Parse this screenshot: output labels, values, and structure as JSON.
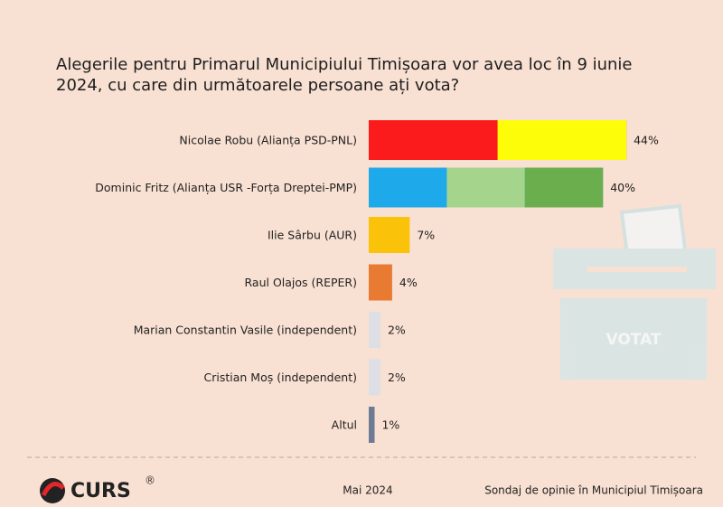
{
  "chart_data": {
    "type": "bar",
    "title": "Alegerile pentru Primarul Municipiului Timișoara vor avea loc în 9 iunie 2024, cu care din următoarele persoane ați vota?",
    "categories": [
      "Nicolae Robu (Alianța PSD-PNL)",
      "Dominic Fritz (Alianța USR -Forța Dreptei-PMP)",
      "Ilie Sârbu (AUR)",
      "Raul Olajos (REPER)",
      "Marian Constantin Vasile (independent)",
      "Cristian Moș (independent)",
      "Altul"
    ],
    "values": [
      44,
      40,
      7,
      4,
      2,
      2,
      1
    ],
    "value_labels": [
      "44%",
      "40%",
      "7%",
      "4%",
      "2%",
      "2%",
      "1%"
    ],
    "colors": [
      [
        "#fb1a1c",
        "#fdfd0a"
      ],
      [
        "#1eaaea",
        "#a5d48c",
        "#6bae4d"
      ],
      [
        "#fbc20a"
      ],
      [
        "#e97a32"
      ],
      [
        "#dedfe4"
      ],
      [
        "#dedfe4"
      ],
      [
        "#6c7a93"
      ]
    ]
  },
  "illustration": {
    "label": "VOTAT"
  },
  "footer": {
    "brand": "CURS",
    "mark": "®",
    "date": "Mai 2024",
    "source": "Sondaj de opinie în Municipiul Timișoara"
  }
}
